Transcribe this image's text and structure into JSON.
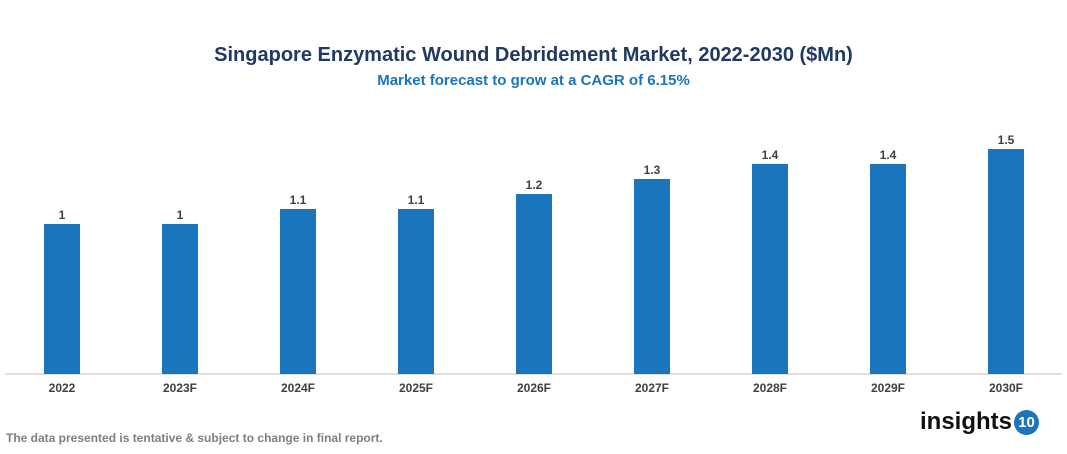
{
  "chart_data": {
    "type": "bar",
    "title": "Singapore Enzymatic Wound Debridement Market, 2022-2030 ($Mn)",
    "subtitle": "Market forecast to grow at a CAGR of 6.15%",
    "categories": [
      "2022",
      "2023F",
      "2024F",
      "2025F",
      "2026F",
      "2027F",
      "2028F",
      "2029F",
      "2030F"
    ],
    "values": [
      1,
      1,
      1.1,
      1.1,
      1.2,
      1.3,
      1.4,
      1.4,
      1.5
    ],
    "data_labels": [
      "1",
      "1",
      "1.1",
      "1.1",
      "1.2",
      "1.3",
      "1.4",
      "1.4",
      "1.5"
    ],
    "ylim": [
      0,
      1.6
    ],
    "grid": false,
    "bar_color": "#1a75bc"
  },
  "footnote": "The data presented is tentative & subject to change in final report.",
  "logo": {
    "text": "insights",
    "badge": "10"
  }
}
